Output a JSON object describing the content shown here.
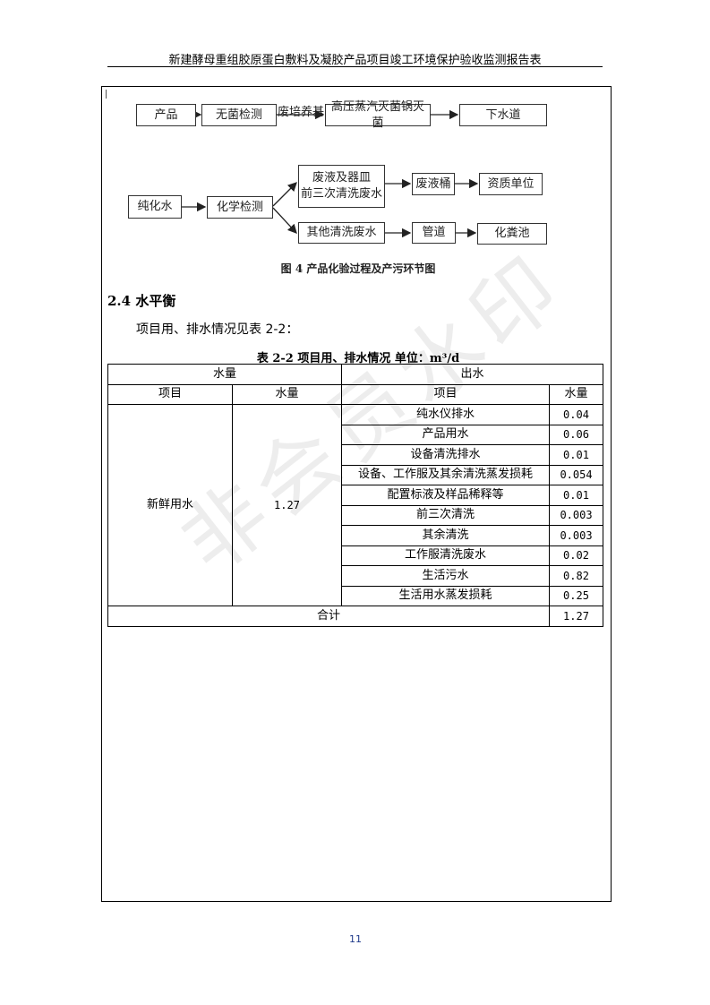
{
  "header": {
    "title": "新建酵母重组胶原蛋白敷料及凝胶产品项目竣工环境保护验收监测报告表"
  },
  "diagram": {
    "row1": [
      "产品",
      "无菌检测",
      "高压蒸汽灭菌锅灭菌",
      "下水道"
    ],
    "row1_label": "废培养基",
    "row2": {
      "start": "纯化水",
      "test": "化学检测",
      "upper": [
        "废液及器皿",
        "前三次清洗废水"
      ],
      "upper_next": [
        "废液桶",
        "资质单位"
      ],
      "lower": "其他清洗废水",
      "lower_next": [
        "管道",
        "化粪池"
      ]
    },
    "caption": "图 4   产品化验过程及产污环节图"
  },
  "section": {
    "heading": "2.4  水平衡",
    "paragraph": "项目用、排水情况见表 2-2："
  },
  "table": {
    "caption": "表 2-2  项目用、排水情况   单位：m³/d",
    "group_headers": [
      "水量",
      "出水"
    ],
    "col_headers": [
      "项目",
      "水量",
      "项目",
      "水量"
    ],
    "input": {
      "item": "新鲜用水",
      "value": "1.27"
    },
    "outputs": [
      {
        "item": "纯水仪排水",
        "value": "0.04"
      },
      {
        "item": "产品用水",
        "value": "0.06"
      },
      {
        "item": "设备清洗排水",
        "value": "0.01"
      },
      {
        "item": "设备、工作服及其余清洗蒸发损耗",
        "value": "0.054"
      },
      {
        "item": "配置标液及样品稀释等",
        "value": "0.01"
      },
      {
        "item": "前三次清洗",
        "value": "0.003"
      },
      {
        "item": "其余清洗",
        "value": "0.003"
      },
      {
        "item": "工作服清洗废水",
        "value": "0.02"
      },
      {
        "item": "生活污水",
        "value": "0.82"
      },
      {
        "item": "生活用水蒸发损耗",
        "value": "0.25"
      }
    ],
    "total_label": "合计",
    "total_value": "1.27"
  },
  "watermark": "非会员水印",
  "footer": {
    "page_number": "11"
  }
}
